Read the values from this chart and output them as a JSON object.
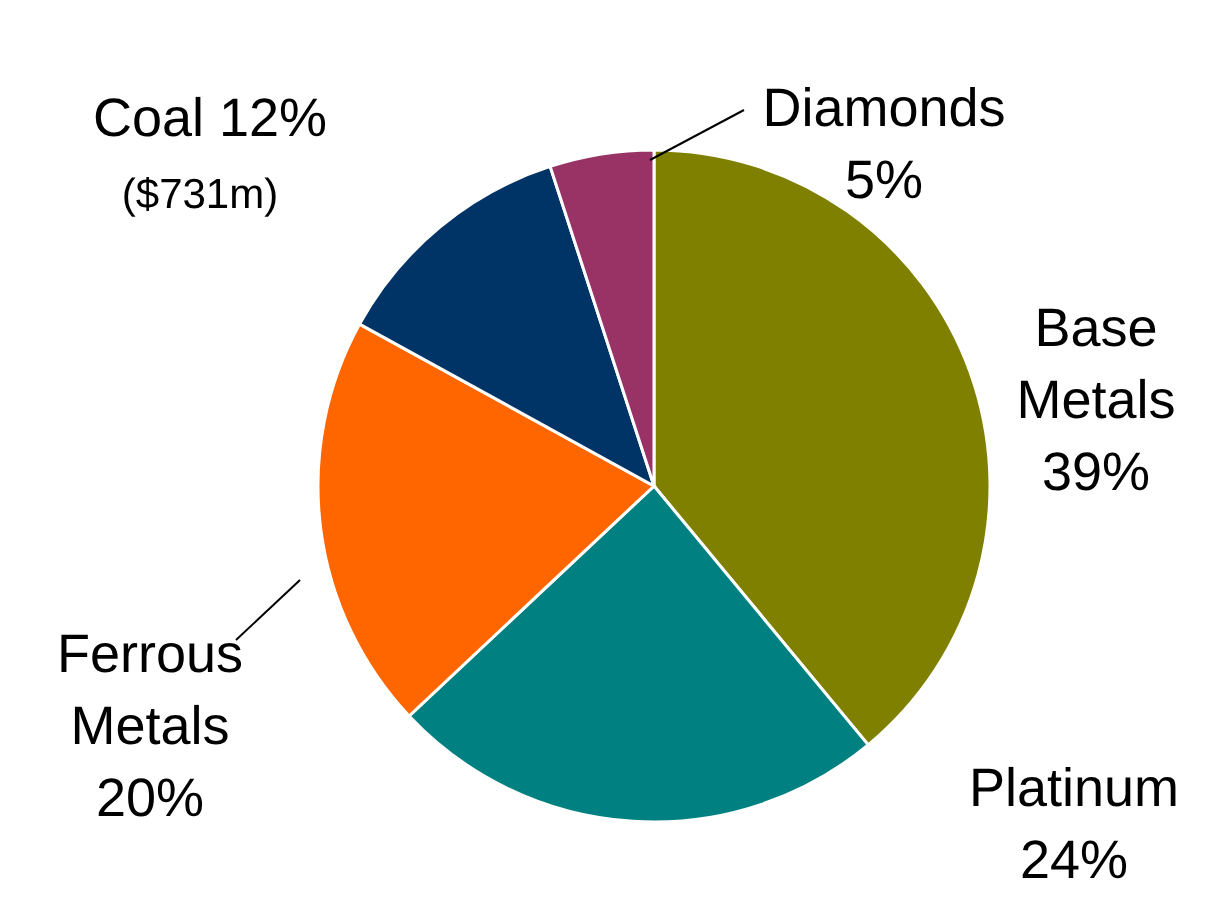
{
  "chart_data": {
    "type": "pie",
    "categories": [
      "Base Metals",
      "Platinum",
      "Ferrous Metals",
      "Coal",
      "Diamonds"
    ],
    "values": [
      39,
      24,
      20,
      12,
      5
    ],
    "value_labels": [
      "39%",
      "24%",
      "20%",
      "12%",
      "5%"
    ],
    "colors": [
      "#808000",
      "#008080",
      "#ff6600",
      "#003366",
      "#993366"
    ],
    "annotations": [
      {
        "text": "($731m)",
        "x": "Coal"
      }
    ]
  }
}
